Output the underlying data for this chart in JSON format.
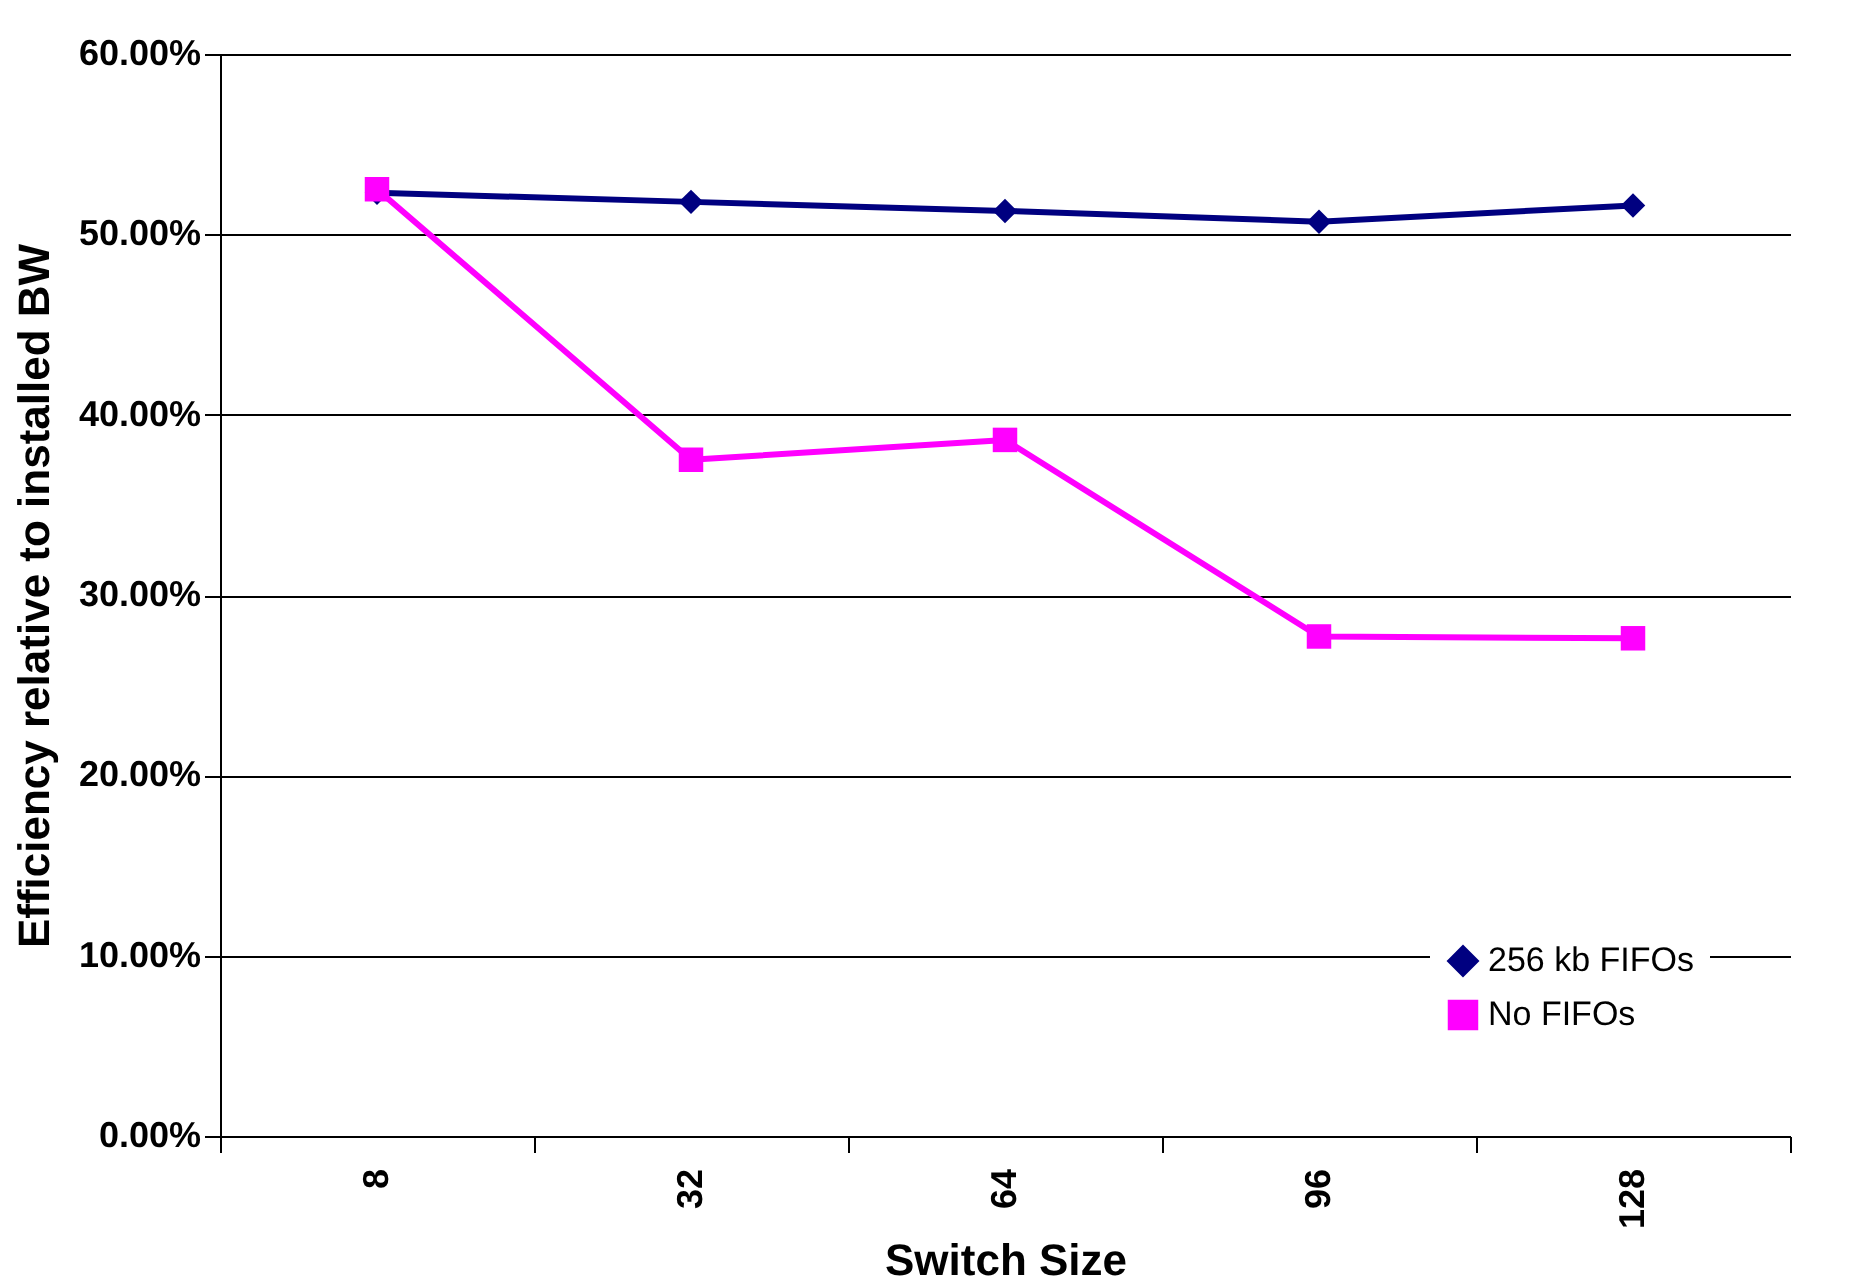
{
  "chart_data": {
    "type": "line",
    "xlabel": "Switch Size",
    "ylabel": "Efficiency relative to installed BW",
    "categories": [
      "8",
      "32",
      "64",
      "96",
      "128"
    ],
    "series": [
      {
        "name": "256 kb FIFOs",
        "color": "#000080",
        "marker": "diamond",
        "values": [
          52.3,
          51.8,
          51.3,
          50.7,
          51.6
        ]
      },
      {
        "name": "No FIFOs",
        "color": "#ff00ff",
        "marker": "square",
        "values": [
          52.5,
          37.5,
          38.6,
          27.7,
          27.6
        ]
      }
    ],
    "ylim": [
      0,
      60
    ],
    "yticks": [
      {
        "value": 0,
        "label": "0.00%"
      },
      {
        "value": 10,
        "label": "10.00%"
      },
      {
        "value": 20,
        "label": "20.00%"
      },
      {
        "value": 30,
        "label": "30.00%"
      },
      {
        "value": 40,
        "label": "40.00%"
      },
      {
        "value": 50,
        "label": "50.00%"
      },
      {
        "value": 60,
        "label": "60.00%"
      }
    ],
    "grid": "y",
    "legend": "bottom right",
    "line_style": "solid"
  }
}
